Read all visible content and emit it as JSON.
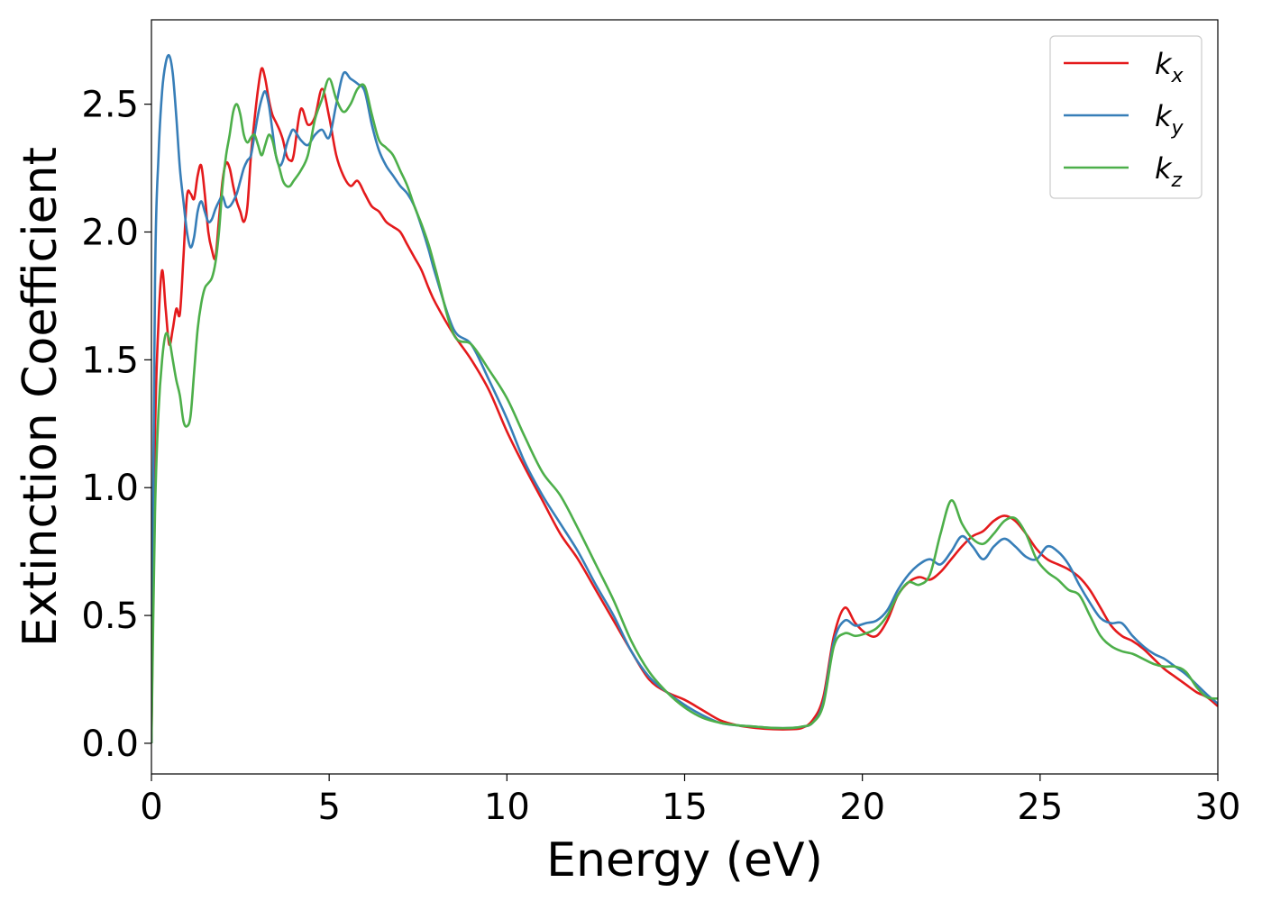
{
  "chart_data": {
    "type": "line",
    "title": "",
    "xlabel": "Energy (eV)",
    "ylabel": "Extinction Coefficient",
    "xlim": [
      0,
      30
    ],
    "ylim": [
      -0.12,
      2.83
    ],
    "xticks": [
      0,
      5,
      10,
      15,
      20,
      25,
      30
    ],
    "xtick_labels": [
      "0",
      "5",
      "10",
      "15",
      "20",
      "25",
      "30"
    ],
    "yticks": [
      0.0,
      0.5,
      1.0,
      1.5,
      2.0,
      2.5
    ],
    "ytick_labels": [
      "0.0",
      "0.5",
      "1.0",
      "1.5",
      "2.0",
      "2.5"
    ],
    "grid": false,
    "legend_position": "top-right",
    "series": [
      {
        "name": "k_x",
        "label_base": "k",
        "label_sub": "x",
        "color": "#e41a1c",
        "x": [
          0,
          0.1,
          0.2,
          0.3,
          0.4,
          0.5,
          0.6,
          0.7,
          0.8,
          0.9,
          1.0,
          1.1,
          1.2,
          1.3,
          1.4,
          1.5,
          1.6,
          1.7,
          1.8,
          1.9,
          2.0,
          2.1,
          2.2,
          2.3,
          2.4,
          2.5,
          2.6,
          2.7,
          2.8,
          2.9,
          3.0,
          3.1,
          3.2,
          3.3,
          3.4,
          3.5,
          3.6,
          3.7,
          3.8,
          3.9,
          4.0,
          4.2,
          4.4,
          4.6,
          4.8,
          5.0,
          5.2,
          5.4,
          5.6,
          5.8,
          6.0,
          6.2,
          6.4,
          6.6,
          6.8,
          7.0,
          7.2,
          7.4,
          7.6,
          7.8,
          8.0,
          8.5,
          9.0,
          9.5,
          10.0,
          10.5,
          11.0,
          11.5,
          12.0,
          12.5,
          13.0,
          13.5,
          14.0,
          14.5,
          15.0,
          15.5,
          16.0,
          16.5,
          17.0,
          17.5,
          18.0,
          18.3,
          18.6,
          18.9,
          19.2,
          19.5,
          19.8,
          20.1,
          20.4,
          20.7,
          21.0,
          21.3,
          21.6,
          21.9,
          22.2,
          22.5,
          22.8,
          23.1,
          23.4,
          23.7,
          24.0,
          24.3,
          24.6,
          24.9,
          25.2,
          25.5,
          25.8,
          26.1,
          26.4,
          26.7,
          27.0,
          27.3,
          27.6,
          27.9,
          28.2,
          28.5,
          28.8,
          29.1,
          29.4,
          29.7,
          30.0
        ],
        "y": [
          0.0,
          1.2,
          1.65,
          1.85,
          1.7,
          1.56,
          1.62,
          1.7,
          1.68,
          1.9,
          2.14,
          2.15,
          2.13,
          2.22,
          2.26,
          2.15,
          2.0,
          1.93,
          1.9,
          2.05,
          2.2,
          2.27,
          2.25,
          2.18,
          2.12,
          2.08,
          2.04,
          2.1,
          2.3,
          2.44,
          2.56,
          2.64,
          2.6,
          2.52,
          2.46,
          2.43,
          2.4,
          2.36,
          2.3,
          2.28,
          2.3,
          2.48,
          2.42,
          2.45,
          2.56,
          2.45,
          2.3,
          2.22,
          2.18,
          2.2,
          2.15,
          2.1,
          2.08,
          2.04,
          2.02,
          2.0,
          1.95,
          1.9,
          1.85,
          1.78,
          1.72,
          1.6,
          1.5,
          1.38,
          1.22,
          1.08,
          0.95,
          0.82,
          0.72,
          0.6,
          0.48,
          0.36,
          0.25,
          0.2,
          0.17,
          0.13,
          0.09,
          0.07,
          0.06,
          0.055,
          0.055,
          0.06,
          0.09,
          0.18,
          0.42,
          0.53,
          0.47,
          0.43,
          0.42,
          0.48,
          0.58,
          0.63,
          0.65,
          0.64,
          0.67,
          0.72,
          0.77,
          0.81,
          0.83,
          0.87,
          0.89,
          0.87,
          0.82,
          0.76,
          0.72,
          0.7,
          0.68,
          0.65,
          0.6,
          0.53,
          0.46,
          0.42,
          0.4,
          0.37,
          0.33,
          0.29,
          0.26,
          0.23,
          0.2,
          0.18,
          0.145
        ]
      },
      {
        "name": "k_y",
        "label_base": "k",
        "label_sub": "y",
        "color": "#377eb8",
        "x": [
          0,
          0.1,
          0.2,
          0.3,
          0.4,
          0.5,
          0.6,
          0.7,
          0.8,
          0.9,
          1.0,
          1.1,
          1.2,
          1.3,
          1.4,
          1.5,
          1.6,
          1.7,
          1.8,
          1.9,
          2.0,
          2.1,
          2.2,
          2.3,
          2.4,
          2.5,
          2.6,
          2.7,
          2.8,
          2.9,
          3.0,
          3.1,
          3.2,
          3.3,
          3.4,
          3.5,
          3.6,
          3.7,
          3.8,
          3.9,
          4.0,
          4.2,
          4.4,
          4.6,
          4.8,
          5.0,
          5.2,
          5.4,
          5.6,
          5.8,
          6.0,
          6.2,
          6.4,
          6.6,
          6.8,
          7.0,
          7.2,
          7.4,
          7.6,
          7.8,
          8.0,
          8.5,
          9.0,
          9.5,
          10.0,
          10.5,
          11.0,
          11.5,
          12.0,
          12.5,
          13.0,
          13.5,
          14.0,
          14.5,
          15.0,
          15.5,
          16.0,
          16.5,
          17.0,
          17.5,
          18.0,
          18.3,
          18.6,
          18.9,
          19.2,
          19.5,
          19.8,
          20.1,
          20.4,
          20.7,
          21.0,
          21.3,
          21.6,
          21.9,
          22.2,
          22.5,
          22.8,
          23.1,
          23.4,
          23.7,
          24.0,
          24.3,
          24.6,
          24.9,
          25.2,
          25.5,
          25.8,
          26.1,
          26.4,
          26.7,
          27.0,
          27.3,
          27.6,
          27.9,
          28.2,
          28.5,
          28.8,
          29.1,
          29.4,
          29.7,
          30.0
        ],
        "y": [
          0.0,
          1.8,
          2.3,
          2.55,
          2.66,
          2.69,
          2.62,
          2.45,
          2.25,
          2.12,
          2.0,
          1.94,
          1.98,
          2.08,
          2.12,
          2.08,
          2.04,
          2.05,
          2.09,
          2.12,
          2.14,
          2.1,
          2.1,
          2.12,
          2.15,
          2.2,
          2.25,
          2.28,
          2.3,
          2.38,
          2.46,
          2.52,
          2.55,
          2.5,
          2.4,
          2.3,
          2.26,
          2.28,
          2.34,
          2.38,
          2.4,
          2.36,
          2.34,
          2.38,
          2.4,
          2.37,
          2.5,
          2.62,
          2.6,
          2.58,
          2.55,
          2.42,
          2.32,
          2.26,
          2.22,
          2.18,
          2.15,
          2.1,
          2.02,
          1.93,
          1.83,
          1.62,
          1.56,
          1.42,
          1.27,
          1.1,
          0.97,
          0.86,
          0.75,
          0.62,
          0.5,
          0.36,
          0.26,
          0.2,
          0.15,
          0.11,
          0.08,
          0.07,
          0.065,
          0.06,
          0.06,
          0.065,
          0.08,
          0.16,
          0.4,
          0.48,
          0.46,
          0.47,
          0.48,
          0.52,
          0.6,
          0.66,
          0.7,
          0.72,
          0.7,
          0.75,
          0.81,
          0.77,
          0.72,
          0.77,
          0.8,
          0.77,
          0.73,
          0.72,
          0.77,
          0.75,
          0.7,
          0.62,
          0.55,
          0.49,
          0.47,
          0.47,
          0.42,
          0.38,
          0.35,
          0.33,
          0.3,
          0.27,
          0.23,
          0.19,
          0.155
        ]
      },
      {
        "name": "k_z",
        "label_base": "k",
        "label_sub": "z",
        "color": "#4daf4a",
        "x": [
          0,
          0.1,
          0.2,
          0.3,
          0.4,
          0.5,
          0.6,
          0.7,
          0.8,
          0.9,
          1.0,
          1.1,
          1.2,
          1.3,
          1.4,
          1.5,
          1.6,
          1.7,
          1.8,
          1.9,
          2.0,
          2.1,
          2.2,
          2.3,
          2.4,
          2.5,
          2.6,
          2.7,
          2.8,
          2.9,
          3.0,
          3.1,
          3.2,
          3.3,
          3.4,
          3.5,
          3.6,
          3.7,
          3.8,
          3.9,
          4.0,
          4.2,
          4.4,
          4.6,
          4.8,
          5.0,
          5.2,
          5.4,
          5.6,
          5.8,
          6.0,
          6.2,
          6.4,
          6.6,
          6.8,
          7.0,
          7.2,
          7.4,
          7.6,
          7.8,
          8.0,
          8.5,
          9.0,
          9.5,
          10.0,
          10.5,
          11.0,
          11.5,
          12.0,
          12.5,
          13.0,
          13.5,
          14.0,
          14.5,
          15.0,
          15.5,
          16.0,
          16.5,
          17.0,
          17.5,
          18.0,
          18.3,
          18.6,
          18.9,
          19.2,
          19.5,
          19.8,
          20.1,
          20.4,
          20.7,
          21.0,
          21.3,
          21.6,
          21.9,
          22.2,
          22.5,
          22.8,
          23.1,
          23.4,
          23.7,
          24.0,
          24.3,
          24.6,
          24.9,
          25.2,
          25.5,
          25.8,
          26.1,
          26.4,
          26.7,
          27.0,
          27.3,
          27.6,
          27.9,
          28.2,
          28.5,
          28.8,
          29.1,
          29.4,
          29.7,
          30.0
        ],
        "y": [
          0.0,
          0.9,
          1.3,
          1.5,
          1.6,
          1.58,
          1.5,
          1.42,
          1.36,
          1.26,
          1.24,
          1.28,
          1.45,
          1.62,
          1.72,
          1.78,
          1.8,
          1.82,
          1.88,
          2.0,
          2.18,
          2.3,
          2.38,
          2.47,
          2.5,
          2.46,
          2.38,
          2.35,
          2.37,
          2.38,
          2.34,
          2.3,
          2.34,
          2.38,
          2.36,
          2.3,
          2.25,
          2.2,
          2.18,
          2.18,
          2.2,
          2.24,
          2.3,
          2.44,
          2.52,
          2.6,
          2.52,
          2.47,
          2.5,
          2.56,
          2.57,
          2.46,
          2.36,
          2.33,
          2.3,
          2.24,
          2.18,
          2.1,
          2.03,
          1.95,
          1.85,
          1.6,
          1.56,
          1.46,
          1.35,
          1.2,
          1.06,
          0.97,
          0.84,
          0.7,
          0.56,
          0.4,
          0.28,
          0.2,
          0.14,
          0.1,
          0.08,
          0.07,
          0.065,
          0.06,
          0.06,
          0.065,
          0.08,
          0.15,
          0.38,
          0.43,
          0.42,
          0.43,
          0.45,
          0.5,
          0.58,
          0.63,
          0.62,
          0.66,
          0.82,
          0.95,
          0.86,
          0.8,
          0.78,
          0.82,
          0.87,
          0.88,
          0.82,
          0.72,
          0.67,
          0.64,
          0.6,
          0.58,
          0.5,
          0.42,
          0.38,
          0.36,
          0.35,
          0.33,
          0.31,
          0.3,
          0.3,
          0.28,
          0.22,
          0.18,
          0.175
        ]
      }
    ]
  }
}
